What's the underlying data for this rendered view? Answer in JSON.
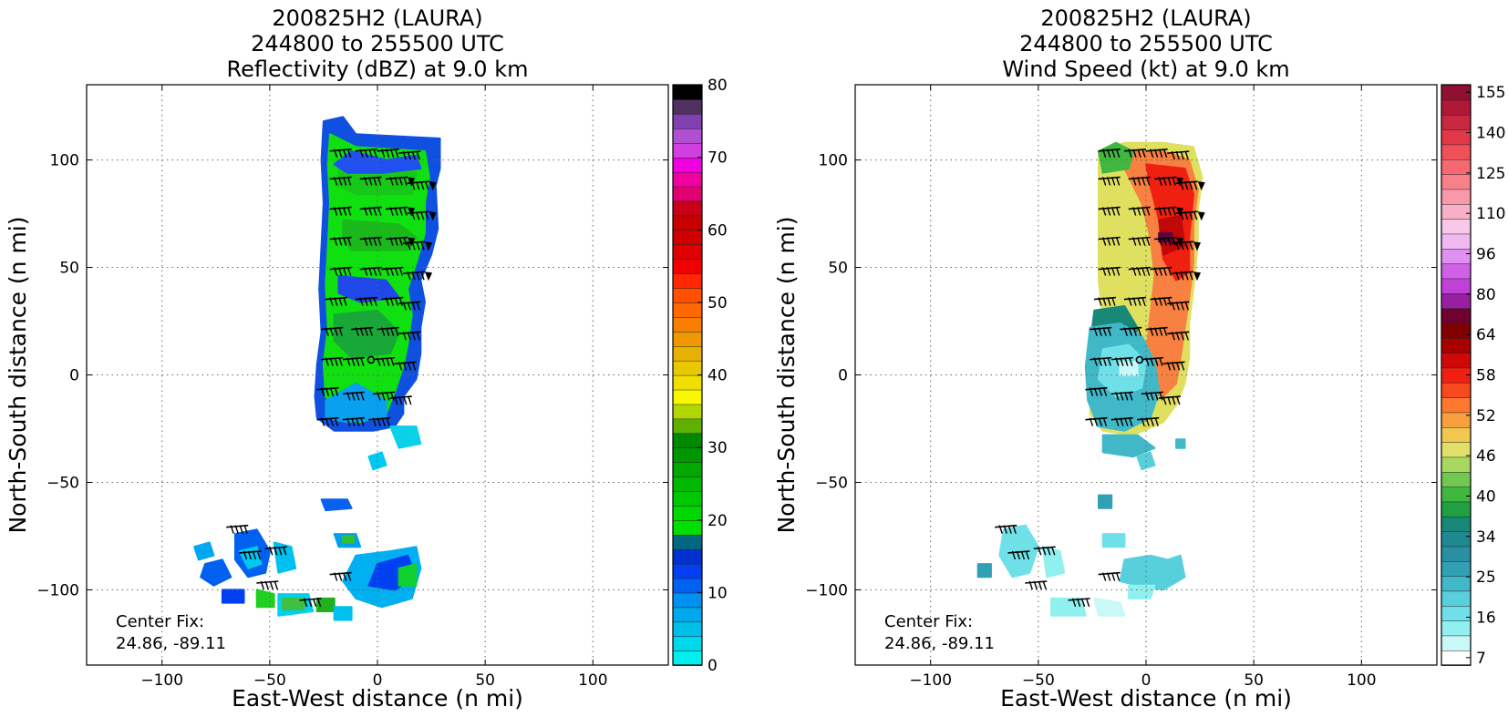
{
  "panels": [
    {
      "title_lines": [
        "200825H2 (LAURA)",
        "244800 to 255500 UTC",
        "Reflectivity (dBZ) at 9.0 km"
      ],
      "xlabel": "East-West distance (n mi)",
      "ylabel": "North-South distance (n mi)",
      "center_fix_label": "Center Fix:",
      "center_fix_value": "24.86, -89.11",
      "colorbar_ticks": [
        "0",
        "10",
        "20",
        "30",
        "40",
        "50",
        "60",
        "70",
        "80"
      ],
      "colorbar_colors": [
        "#00f0f0",
        "#00d8ec",
        "#00c0ea",
        "#00a8ee",
        "#0090f0",
        "#0060f0",
        "#0040f0",
        "#0030d0",
        "#006880",
        "#00e000",
        "#00d800",
        "#00c800",
        "#00b800",
        "#00a800",
        "#009800",
        "#008800",
        "#60b000",
        "#b0d800",
        "#f8f800",
        "#f0e000",
        "#e8c800",
        "#e8b000",
        "#f09800",
        "#f88000",
        "#ff6800",
        "#ff5000",
        "#ff2800",
        "#f00000",
        "#e00000",
        "#d00000",
        "#c80000",
        "#c80018",
        "#e00070",
        "#f000a0",
        "#f000e0",
        "#d040e0",
        "#b050d0",
        "#8040b0",
        "#503060",
        "#000000"
      ],
      "colorbar_range": [
        0,
        80
      ]
    },
    {
      "title_lines": [
        "200825H2 (LAURA)",
        "244800 to 255500 UTC",
        "Wind Speed (kt) at 9.0 km"
      ],
      "xlabel": "East-West distance (n mi)",
      "ylabel": "North-South distance (n mi)",
      "center_fix_label": "Center Fix:",
      "center_fix_value": "24.86, -89.11",
      "colorbar_ticks": [
        "7",
        "16",
        "25",
        "34",
        "40",
        "46",
        "52",
        "58",
        "64",
        "80",
        "96",
        "110",
        "125",
        "140",
        "155"
      ],
      "colorbar_colors": [
        "#ffffff",
        "#c8f8f8",
        "#90f0f0",
        "#70e0e8",
        "#58d0dc",
        "#40b8c8",
        "#30a0b4",
        "#2890a0",
        "#208890",
        "#188878",
        "#20a040",
        "#40b840",
        "#70c850",
        "#a8d860",
        "#e0e068",
        "#f0c850",
        "#f8a040",
        "#ff7830",
        "#f84820",
        "#f02010",
        "#d00808",
        "#a80000",
        "#800000",
        "#700030",
        "#9820a0",
        "#c040d8",
        "#d060e8",
        "#e090f0",
        "#f0b8f0",
        "#f8c8e8",
        "#f8b0c8",
        "#f898a8",
        "#f88088",
        "#f86870",
        "#f05058",
        "#e03848",
        "#c82840",
        "#b01838",
        "#901030"
      ],
      "colorbar_range": [
        7,
        160
      ]
    }
  ],
  "chart_data": [
    {
      "type": "heatmap",
      "title": "200825H2 (LAURA) 244800 to 255500 UTC Reflectivity (dBZ) at 9.0 km",
      "xlabel": "East-West distance (n mi)",
      "ylabel": "North-South distance (n mi)",
      "xlim": [
        -135,
        135
      ],
      "ylim": [
        -135,
        135
      ],
      "xticks": [
        "−100",
        "−50",
        "0",
        "50",
        "100"
      ],
      "yticks": [
        "−100",
        "−50",
        "0",
        "50",
        "100"
      ],
      "grid": true,
      "units": "dBZ",
      "center_fix": [
        24.86,
        -89.11
      ],
      "center_marker": [
        -3,
        7
      ]
    },
    {
      "type": "heatmap",
      "title": "200825H2 (LAURA) 244800 to 255500 UTC Wind Speed (kt) at 9.0 km",
      "xlabel": "East-West distance (n mi)",
      "ylabel": "North-South distance (n mi)",
      "xlim": [
        -135,
        135
      ],
      "ylim": [
        -135,
        135
      ],
      "xticks": [
        "−100",
        "−50",
        "0",
        "50",
        "100"
      ],
      "yticks": [
        "−100",
        "−50",
        "0",
        "50",
        "100"
      ],
      "grid": true,
      "units": "kt",
      "center_fix": [
        24.86,
        -89.11
      ],
      "center_marker": [
        -3,
        7
      ]
    }
  ]
}
